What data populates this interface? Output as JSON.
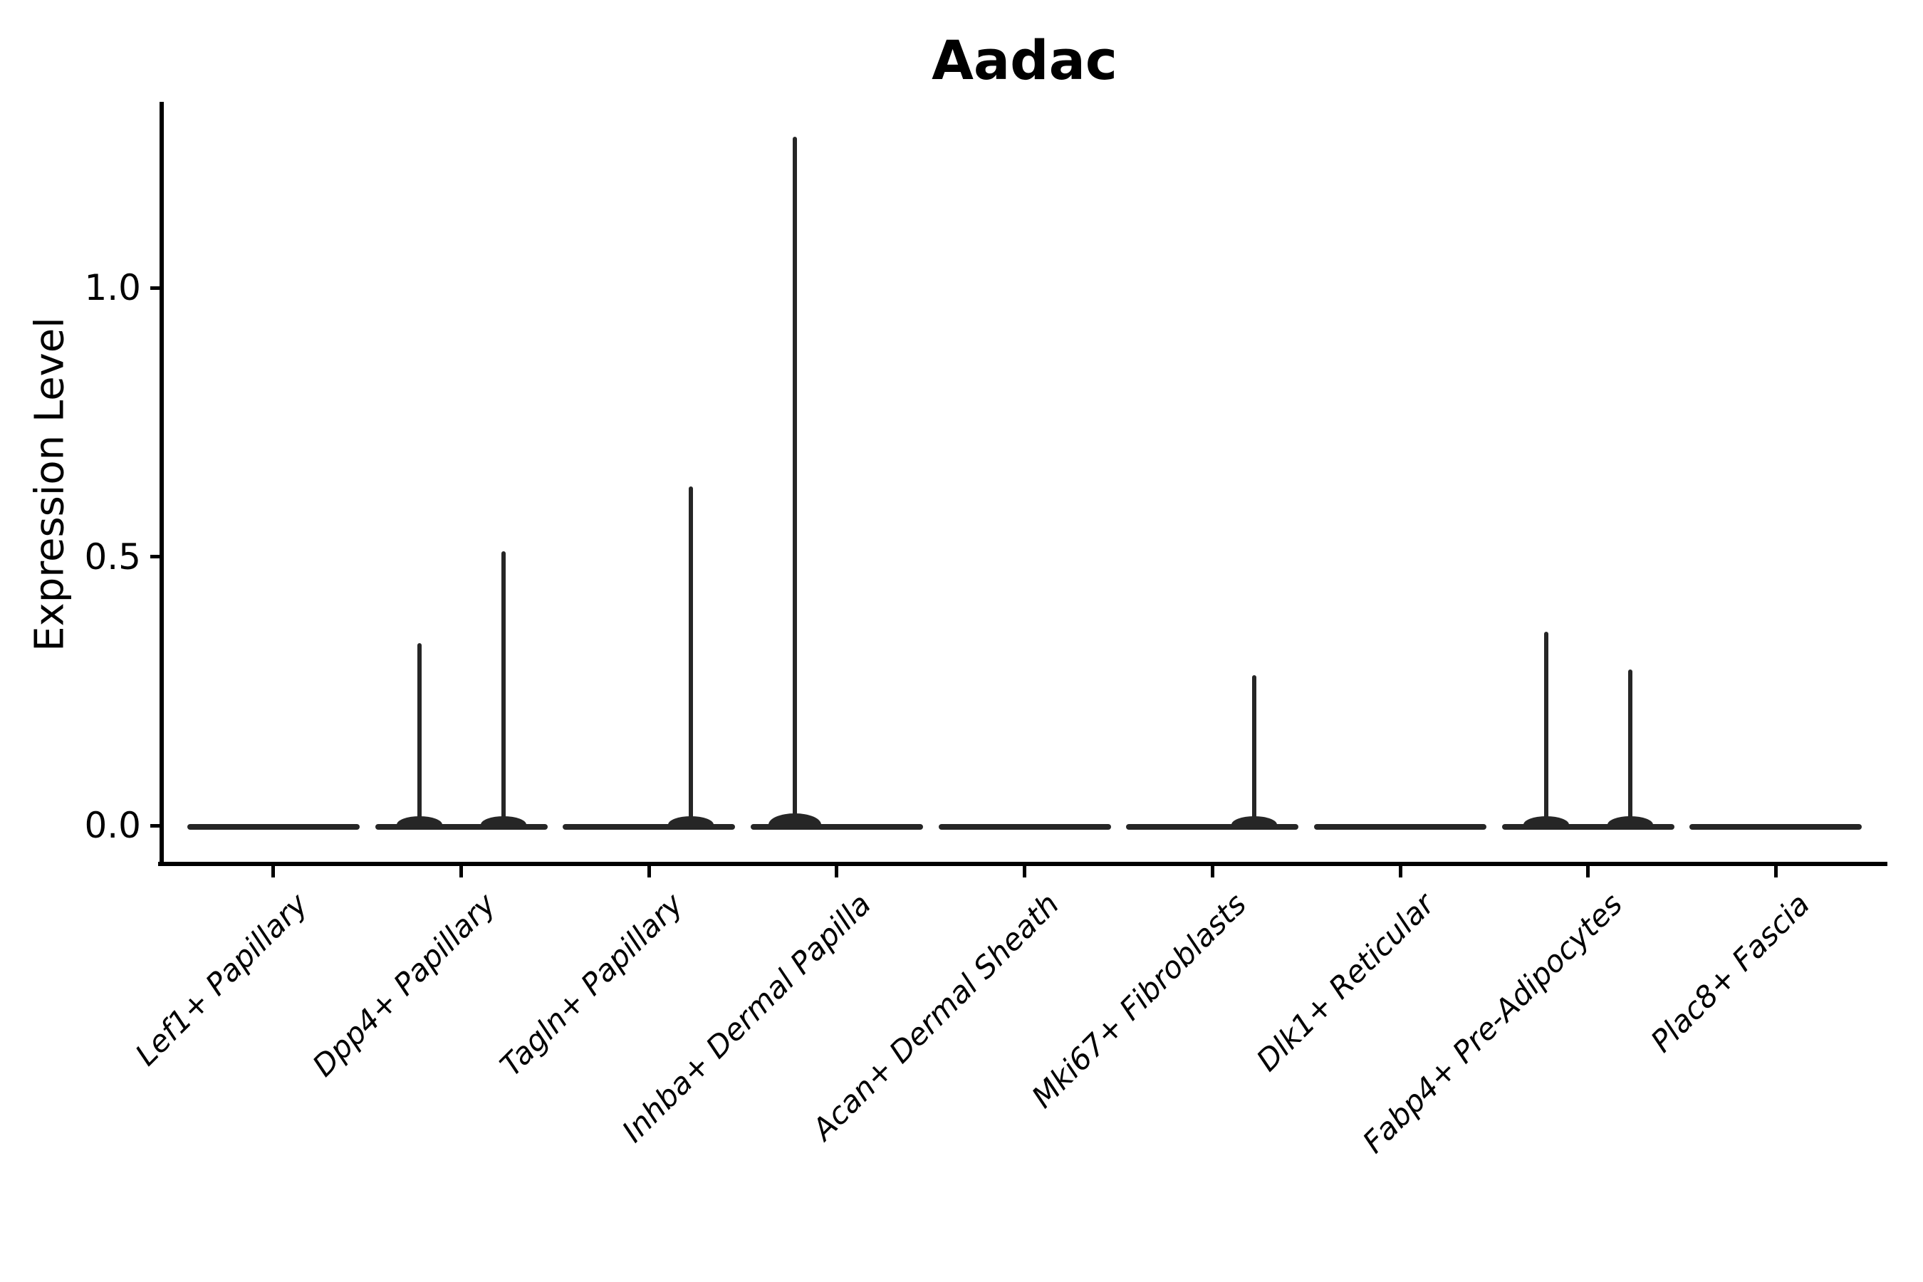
{
  "title": "Aadac",
  "y_axis": {
    "label": "Expression Level",
    "tick_labels": [
      "1.0",
      "0.5",
      "0.0"
    ],
    "tick_values": [
      1.0,
      0.5,
      0.0
    ]
  },
  "x_axis": {
    "tick_labels": [
      "Lef1+ Papillary",
      "Dpp4+ Papillary",
      "Tagln+ Papillary",
      "Inhba+ Dermal Papilla",
      "Acan+ Dermal Sheath",
      "Mki67+ Fibroblasts",
      "Dlk1+ Reticular",
      "Fabp4+ Pre-Adipocytes",
      "Plac8+ Fascia"
    ]
  },
  "colors": {
    "violin_stroke": "#262626",
    "axis": "#000000",
    "background": "#ffffff"
  },
  "chart_data": {
    "type": "violin",
    "title": "Aadac",
    "xlabel": "",
    "ylabel": "Expression Level",
    "yticks": [
      0.0,
      0.5,
      1.0
    ],
    "ylim": [
      -0.07,
      1.35
    ],
    "grid": false,
    "legend": null,
    "categories": [
      "Lef1+ Papillary",
      "Dpp4+ Papillary",
      "Tagln+ Papillary",
      "Inhba+ Dermal Papilla",
      "Acan+ Dermal Sheath",
      "Mki67+ Fibroblasts",
      "Dlk1+ Reticular",
      "Fabp4+ Pre-Adipocytes",
      "Plac8+ Fascia"
    ],
    "description": "Violin plot of Aadac expression; every cell type has a flat violin body at expression 0, some with thin spikes from rare expressing cells",
    "violins": [
      {
        "category": "Lef1+ Papillary",
        "baseline_value": 0.0,
        "spikes": []
      },
      {
        "category": "Dpp4+ Papillary",
        "baseline_value": 0.0,
        "spikes": [
          {
            "value": 0.34,
            "side": "left"
          },
          {
            "value": 0.51,
            "side": "right"
          }
        ]
      },
      {
        "category": "Tagln+ Papillary",
        "baseline_value": 0.0,
        "spikes": [
          {
            "value": 0.63,
            "side": "right"
          }
        ]
      },
      {
        "category": "Inhba+ Dermal Papilla",
        "baseline_value": 0.0,
        "spikes": [
          {
            "value": 1.28,
            "side": "left"
          }
        ]
      },
      {
        "category": "Acan+ Dermal Sheath",
        "baseline_value": 0.0,
        "spikes": []
      },
      {
        "category": "Mki67+ Fibroblasts",
        "baseline_value": 0.0,
        "spikes": [
          {
            "value": 0.28,
            "side": "right"
          }
        ]
      },
      {
        "category": "Dlk1+ Reticular",
        "baseline_value": 0.0,
        "spikes": []
      },
      {
        "category": "Fabp4+ Pre-Adipocytes",
        "baseline_value": 0.0,
        "spikes": [
          {
            "value": 0.36,
            "side": "left"
          },
          {
            "value": 0.29,
            "side": "right"
          }
        ]
      },
      {
        "category": "Plac8+ Fascia",
        "baseline_value": 0.0,
        "spikes": []
      }
    ]
  }
}
